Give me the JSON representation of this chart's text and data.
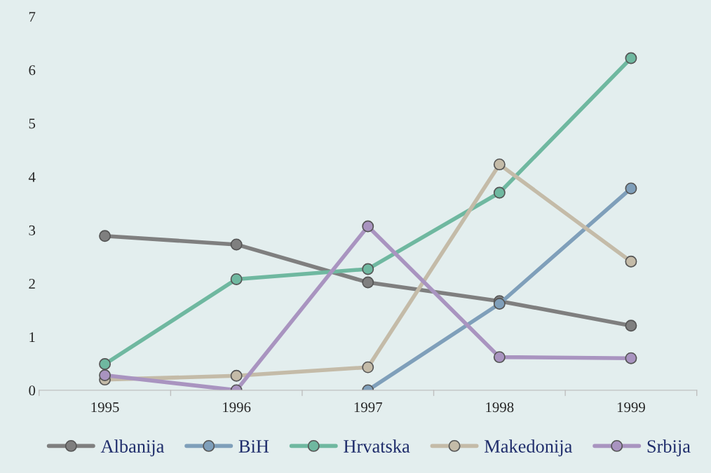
{
  "chart_data": {
    "type": "line",
    "categories": [
      "1995",
      "1996",
      "1997",
      "1998",
      "1999"
    ],
    "series": [
      {
        "name": "Albanija",
        "color": "#7f7f7f",
        "values": [
          2.89,
          2.73,
          2.02,
          1.67,
          1.21
        ]
      },
      {
        "name": "BiH",
        "color": "#7f9fba",
        "values": [
          null,
          null,
          0,
          1.62,
          3.78
        ]
      },
      {
        "name": "Hrvatska",
        "color": "#6fb8a0",
        "values": [
          0.49,
          2.08,
          2.27,
          3.7,
          6.22
        ]
      },
      {
        "name": "Makedonija",
        "color": "#c4bba8",
        "values": [
          0.2,
          0.27,
          0.43,
          4.23,
          2.41
        ]
      },
      {
        "name": "Srbija",
        "color": "#a994c0",
        "values": [
          0.28,
          0,
          3.07,
          0.62,
          0.6
        ]
      }
    ],
    "ylim": [
      0,
      7
    ],
    "yticks": [
      0,
      1,
      2,
      3,
      4,
      5,
      6,
      7
    ],
    "grid": false,
    "legend": "bottom",
    "marker": "circle",
    "line_style": "solid"
  }
}
